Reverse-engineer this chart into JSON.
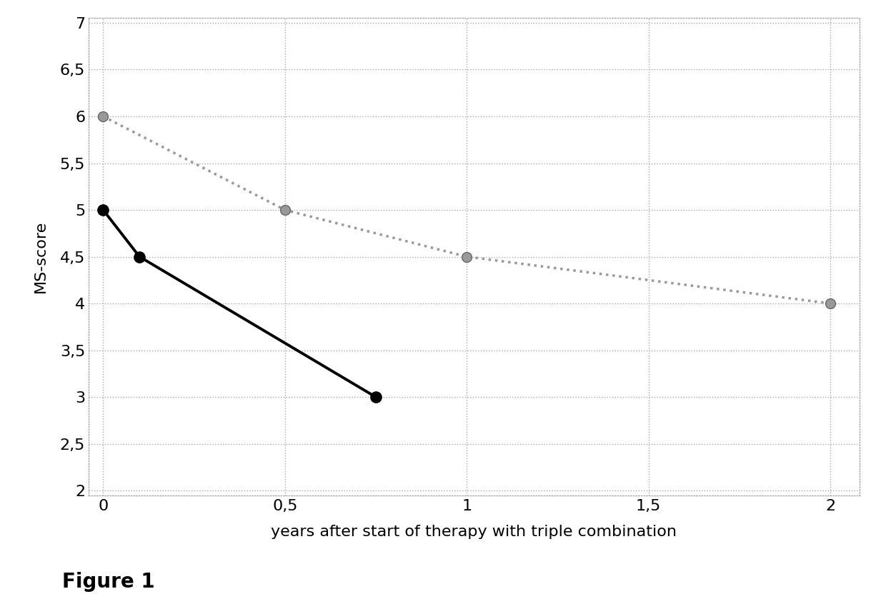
{
  "gray_line": {
    "x": [
      0,
      0.5,
      1,
      2
    ],
    "y": [
      6,
      5,
      4.5,
      4
    ],
    "color": "#999999",
    "linewidth": 2.5,
    "linestyle": "dotted",
    "marker": "o",
    "markersize": 10,
    "markerfacecolor": "#999999",
    "markeredgecolor": "#666666",
    "markeredgewidth": 1.0
  },
  "black_line": {
    "x": [
      0,
      0.1,
      0.75
    ],
    "y": [
      5,
      4.5,
      3
    ],
    "color": "#000000",
    "linewidth": 2.8,
    "linestyle": "solid",
    "marker": "o",
    "markersize": 11,
    "markerfacecolor": "#000000",
    "markeredgecolor": "#000000",
    "markeredgewidth": 1.0
  },
  "xlabel": "years after start of therapy with triple combination",
  "ylabel": "MS-score",
  "xlabel_fontsize": 16,
  "ylabel_fontsize": 16,
  "xlim": [
    -0.04,
    2.08
  ],
  "ylim": [
    1.95,
    7.05
  ],
  "xticks": [
    0,
    0.5,
    1,
    1.5,
    2
  ],
  "yticks": [
    2,
    2.5,
    3,
    3.5,
    4,
    4.5,
    5,
    5.5,
    6,
    6.5,
    7
  ],
  "tick_fontsize": 16,
  "figure_caption": "Figure 1",
  "caption_fontsize": 20,
  "background_color": "#ffffff",
  "grid_color": "#aaaaaa",
  "grid_linestyle": "dotted",
  "grid_linewidth": 1.0,
  "spine_color": "#aaaaaa",
  "spine_linestyle": "dotted",
  "spine_linewidth": 1.0
}
